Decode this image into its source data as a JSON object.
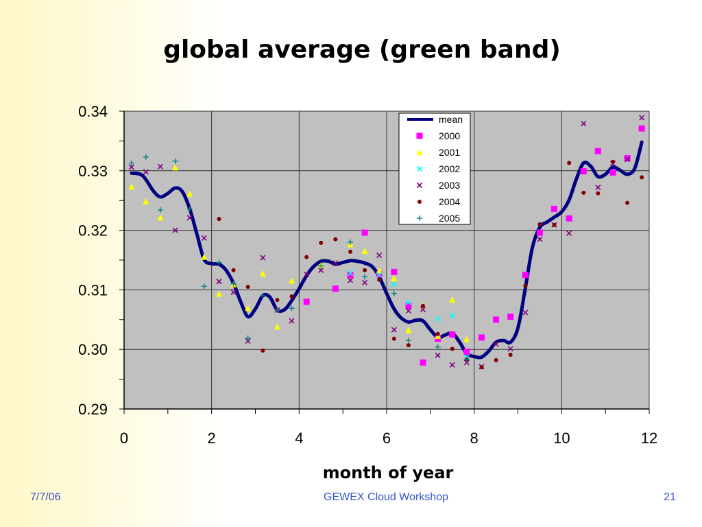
{
  "slide": {
    "title": "global average (green band)",
    "footer_left": "7/7/06",
    "footer_center": "GEWEX Cloud Workshop",
    "footer_right": "21"
  },
  "chart_data": {
    "type": "scatter",
    "title": "",
    "xlabel": "month of year",
    "ylabel": "",
    "xlim": [
      0,
      12
    ],
    "ylim": [
      0.29,
      0.34
    ],
    "x_ticks": [
      "0",
      "2",
      "4",
      "6",
      "8",
      "10",
      "12"
    ],
    "y_ticks": [
      "0.29",
      "0.30",
      "0.31",
      "0.32",
      "0.33",
      "0.34"
    ],
    "grid": true,
    "legend_position": "top-right",
    "plot_background": "#c0c0c0",
    "mean": {
      "name": "mean",
      "color": "#000080",
      "points": [
        [
          0.17,
          0.3296
        ],
        [
          0.42,
          0.3292
        ],
        [
          0.67,
          0.3266
        ],
        [
          0.83,
          0.3256
        ],
        [
          1.0,
          0.3262
        ],
        [
          1.17,
          0.3271
        ],
        [
          1.33,
          0.3265
        ],
        [
          1.5,
          0.3236
        ],
        [
          1.67,
          0.3192
        ],
        [
          1.83,
          0.3151
        ],
        [
          2.0,
          0.3144
        ],
        [
          2.17,
          0.3143
        ],
        [
          2.33,
          0.3133
        ],
        [
          2.5,
          0.3111
        ],
        [
          2.67,
          0.3079
        ],
        [
          2.83,
          0.3055
        ],
        [
          3.0,
          0.3068
        ],
        [
          3.17,
          0.309
        ],
        [
          3.33,
          0.3088
        ],
        [
          3.5,
          0.3066
        ],
        [
          3.67,
          0.3067
        ],
        [
          3.83,
          0.3082
        ],
        [
          4.0,
          0.3102
        ],
        [
          4.17,
          0.3124
        ],
        [
          4.33,
          0.3139
        ],
        [
          4.5,
          0.3148
        ],
        [
          4.67,
          0.3148
        ],
        [
          4.83,
          0.3143
        ],
        [
          5.0,
          0.3146
        ],
        [
          5.17,
          0.3149
        ],
        [
          5.33,
          0.3148
        ],
        [
          5.5,
          0.3145
        ],
        [
          5.67,
          0.3139
        ],
        [
          5.83,
          0.3122
        ],
        [
          6.0,
          0.3094
        ],
        [
          6.17,
          0.3068
        ],
        [
          6.33,
          0.3053
        ],
        [
          6.5,
          0.3046
        ],
        [
          6.67,
          0.3049
        ],
        [
          6.83,
          0.3048
        ],
        [
          7.0,
          0.3033
        ],
        [
          7.17,
          0.302
        ],
        [
          7.33,
          0.3024
        ],
        [
          7.5,
          0.3027
        ],
        [
          7.67,
          0.3012
        ],
        [
          7.83,
          0.2993
        ],
        [
          8.0,
          0.2988
        ],
        [
          8.17,
          0.2987
        ],
        [
          8.33,
          0.2997
        ],
        [
          8.5,
          0.3012
        ],
        [
          8.67,
          0.3015
        ],
        [
          8.83,
          0.3012
        ],
        [
          9.0,
          0.3036
        ],
        [
          9.17,
          0.3103
        ],
        [
          9.33,
          0.3171
        ],
        [
          9.5,
          0.3205
        ],
        [
          9.67,
          0.3214
        ],
        [
          9.83,
          0.3222
        ],
        [
          10.0,
          0.3231
        ],
        [
          10.17,
          0.3251
        ],
        [
          10.33,
          0.3285
        ],
        [
          10.5,
          0.3313
        ],
        [
          10.67,
          0.3307
        ],
        [
          10.83,
          0.329
        ],
        [
          11.0,
          0.3294
        ],
        [
          11.17,
          0.3306
        ],
        [
          11.33,
          0.3301
        ],
        [
          11.5,
          0.3294
        ],
        [
          11.67,
          0.3304
        ],
        [
          11.83,
          0.3348
        ]
      ]
    },
    "series": [
      {
        "name": "2000",
        "marker": "square",
        "color": "#ff00ff",
        "points": [
          [
            4.17,
            0.308
          ],
          [
            4.83,
            0.3102
          ],
          [
            5.17,
            0.3125
          ],
          [
            5.5,
            0.3196
          ],
          [
            5.83,
            0.3126
          ],
          [
            6.17,
            0.313
          ],
          [
            6.5,
            0.3073
          ],
          [
            6.83,
            0.2978
          ],
          [
            7.17,
            0.3018
          ],
          [
            7.5,
            0.3025
          ],
          [
            7.83,
            0.2996
          ],
          [
            8.17,
            0.302
          ],
          [
            8.5,
            0.305
          ],
          [
            8.83,
            0.3055
          ],
          [
            9.17,
            0.3125
          ],
          [
            9.5,
            0.3196
          ],
          [
            9.83,
            0.3236
          ],
          [
            10.17,
            0.322
          ],
          [
            10.5,
            0.3299
          ],
          [
            10.83,
            0.3333
          ],
          [
            11.17,
            0.3297
          ],
          [
            11.5,
            0.3321
          ],
          [
            11.83,
            0.3371
          ]
        ]
      },
      {
        "name": "2001",
        "marker": "triangle",
        "color": "#ffff00",
        "points": [
          [
            0.17,
            0.3273
          ],
          [
            0.5,
            0.3248
          ],
          [
            0.83,
            0.3221
          ],
          [
            1.17,
            0.3305
          ],
          [
            1.5,
            0.3261
          ],
          [
            1.83,
            0.3155
          ],
          [
            2.17,
            0.3093
          ],
          [
            2.5,
            0.3109
          ],
          [
            2.83,
            0.3069
          ],
          [
            3.17,
            0.3127
          ],
          [
            3.5,
            0.3038
          ],
          [
            3.83,
            0.3115
          ],
          [
            4.5,
            0.3141
          ],
          [
            5.17,
            0.3176
          ],
          [
            5.5,
            0.3165
          ],
          [
            5.83,
            0.3132
          ],
          [
            6.17,
            0.3119
          ],
          [
            6.5,
            0.3032
          ],
          [
            6.83,
            0.3073
          ],
          [
            7.17,
            0.3022
          ],
          [
            7.5,
            0.3083
          ],
          [
            7.83,
            0.3017
          ]
        ]
      },
      {
        "name": "2002",
        "marker": "x",
        "color": "#00ffff",
        "points": [
          [
            5.17,
            0.3128
          ],
          [
            5.83,
            0.3125
          ],
          [
            6.17,
            0.3109
          ],
          [
            6.5,
            0.3079
          ],
          [
            7.17,
            0.3051
          ],
          [
            7.5,
            0.3057
          ],
          [
            7.83,
            0.2987
          ]
        ]
      },
      {
        "name": "2003",
        "marker": "x",
        "color": "#800080",
        "points": [
          [
            0.17,
            0.3306
          ],
          [
            0.5,
            0.3298
          ],
          [
            0.83,
            0.3307
          ],
          [
            1.17,
            0.32
          ],
          [
            1.5,
            0.3221
          ],
          [
            1.83,
            0.3187
          ],
          [
            2.17,
            0.3114
          ],
          [
            2.5,
            0.3096
          ],
          [
            2.83,
            0.3014
          ],
          [
            3.17,
            0.3154
          ],
          [
            3.5,
            0.3066
          ],
          [
            3.83,
            0.3048
          ],
          [
            4.17,
            0.3126
          ],
          [
            4.5,
            0.3133
          ],
          [
            4.83,
            0.3145
          ],
          [
            5.17,
            0.3116
          ],
          [
            5.5,
            0.3112
          ],
          [
            5.83,
            0.3158
          ],
          [
            6.17,
            0.3033
          ],
          [
            6.5,
            0.3065
          ],
          [
            6.83,
            0.3067
          ],
          [
            7.17,
            0.299
          ],
          [
            7.5,
            0.2974
          ],
          [
            7.83,
            0.2978
          ],
          [
            8.17,
            0.2971
          ],
          [
            8.5,
            0.3009
          ],
          [
            8.83,
            0.3001
          ],
          [
            9.17,
            0.3062
          ],
          [
            9.5,
            0.3185
          ],
          [
            9.83,
            0.3209
          ],
          [
            10.17,
            0.3195
          ],
          [
            10.5,
            0.3379
          ],
          [
            10.83,
            0.3272
          ],
          [
            11.17,
            0.3312
          ],
          [
            11.5,
            0.3319
          ],
          [
            11.83,
            0.3389
          ]
        ]
      },
      {
        "name": "2004",
        "marker": "dot",
        "color": "#800000",
        "points": [
          [
            2.17,
            0.3219
          ],
          [
            2.5,
            0.3133
          ],
          [
            2.83,
            0.3105
          ],
          [
            3.17,
            0.2998
          ],
          [
            3.5,
            0.3083
          ],
          [
            3.83,
            0.3089
          ],
          [
            4.17,
            0.3155
          ],
          [
            4.5,
            0.3179
          ],
          [
            4.83,
            0.3185
          ],
          [
            5.17,
            0.3164
          ],
          [
            5.5,
            0.3133
          ],
          [
            5.83,
            0.3117
          ],
          [
            6.17,
            0.3018
          ],
          [
            6.5,
            0.3007
          ],
          [
            6.83,
            0.3073
          ],
          [
            7.17,
            0.3026
          ],
          [
            7.5,
            0.3001
          ],
          [
            7.83,
            0.2983
          ],
          [
            8.17,
            0.297
          ],
          [
            8.5,
            0.2982
          ],
          [
            8.83,
            0.2991
          ],
          [
            9.17,
            0.3107
          ],
          [
            9.5,
            0.321
          ],
          [
            9.83,
            0.3209
          ],
          [
            10.17,
            0.3313
          ],
          [
            10.5,
            0.3263
          ],
          [
            10.83,
            0.3262
          ],
          [
            11.17,
            0.3315
          ],
          [
            11.5,
            0.3246
          ],
          [
            11.83,
            0.3289
          ]
        ]
      },
      {
        "name": "2005",
        "marker": "plus",
        "color": "#008080",
        "points": [
          [
            0.17,
            0.3313
          ],
          [
            0.5,
            0.3323
          ],
          [
            0.83,
            0.3234
          ],
          [
            1.17,
            0.3316
          ],
          [
            1.5,
            0.3236
          ],
          [
            1.83,
            0.3106
          ],
          [
            2.17,
            0.3146
          ],
          [
            2.5,
            0.311
          ],
          [
            2.83,
            0.3019
          ],
          [
            3.17,
            0.309
          ],
          [
            3.5,
            0.3066
          ],
          [
            3.83,
            0.3069
          ],
          [
            4.5,
            0.314
          ],
          [
            5.17,
            0.318
          ],
          [
            5.5,
            0.3122
          ],
          [
            6.17,
            0.3094
          ],
          [
            6.5,
            0.3015
          ],
          [
            7.17,
            0.3004
          ],
          [
            7.83,
            0.2983
          ]
        ]
      }
    ]
  }
}
